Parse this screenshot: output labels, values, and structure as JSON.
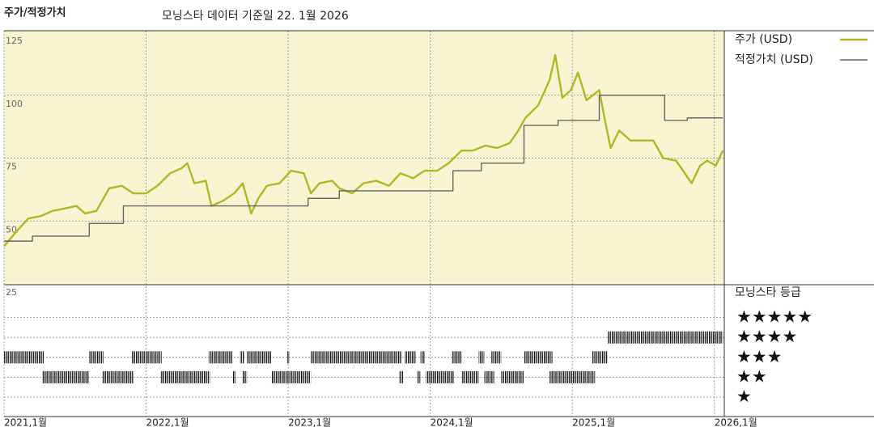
{
  "header": {
    "title": "주가/적정가치",
    "date_note": "모닝스타 데이터 기준일 22. 1월 2026"
  },
  "chart_data": [
    {
      "type": "line",
      "xlim": [
        2021,
        2026.07
      ],
      "ylim": [
        25,
        125
      ],
      "yticks": [
        25,
        50,
        75,
        100,
        125
      ],
      "xticks": [
        {
          "value": 2021,
          "label": "2021,1월"
        },
        {
          "value": 2022,
          "label": "2022,1월"
        },
        {
          "value": 2023,
          "label": "2023,1월"
        },
        {
          "value": 2024,
          "label": "2024,1월"
        },
        {
          "value": 2025,
          "label": "2025,1월"
        },
        {
          "value": 2026,
          "label": "2026,1월"
        }
      ],
      "grid": true,
      "series": [
        {
          "name": "주가 (USD)",
          "color": "#b3b626",
          "x": [
            2021.0,
            2021.09,
            2021.17,
            2021.26,
            2021.34,
            2021.43,
            2021.51,
            2021.57,
            2021.65,
            2021.74,
            2021.83,
            2021.91,
            2022.0,
            2022.08,
            2022.17,
            2022.25,
            2022.29,
            2022.34,
            2022.42,
            2022.46,
            2022.54,
            2022.62,
            2022.68,
            2022.74,
            2022.79,
            2022.85,
            2022.94,
            2023.02,
            2023.11,
            2023.16,
            2023.22,
            2023.31,
            2023.36,
            2023.45,
            2023.53,
            2023.62,
            2023.71,
            2023.79,
            2023.88,
            2023.96,
            2024.05,
            2024.13,
            2024.22,
            2024.3,
            2024.39,
            2024.47,
            2024.56,
            2024.62,
            2024.67,
            2024.76,
            2024.84,
            2024.88,
            2024.93,
            2024.99,
            2025.04,
            2025.1,
            2025.19,
            2025.23,
            2025.27,
            2025.33,
            2025.41,
            2025.5,
            2025.57,
            2025.64,
            2025.73,
            2025.78,
            2025.84,
            2025.9,
            2025.95,
            2026.01,
            2026.06
          ],
          "values": [
            40,
            46,
            51,
            52,
            54,
            55,
            56,
            53,
            54,
            63,
            64,
            61,
            61,
            64,
            69,
            71,
            73,
            65,
            66,
            56,
            58,
            61,
            65,
            53,
            59,
            64,
            65,
            70,
            69,
            61,
            65,
            66,
            63,
            61,
            65,
            66,
            64,
            69,
            67,
            70,
            70,
            73,
            78,
            78,
            80,
            79,
            81,
            86,
            91,
            96,
            106,
            116,
            99,
            102,
            109,
            98,
            102,
            90,
            79,
            86,
            82,
            82,
            82,
            75,
            74,
            70,
            65,
            72,
            74,
            72,
            78
          ]
        },
        {
          "name": "적정가치 (USD)",
          "color": "#666666",
          "drawstyle": "steps-post",
          "x": [
            2021.0,
            2021.2,
            2021.6,
            2021.84,
            2023.14,
            2023.36,
            2024.16,
            2024.36,
            2024.66,
            2024.9,
            2025.19,
            2025.65,
            2025.81,
            2026.06
          ],
          "values": [
            42,
            44,
            49,
            56,
            59,
            62,
            70,
            73,
            88,
            90,
            100,
            90,
            91,
            91
          ]
        }
      ]
    },
    {
      "type": "rating",
      "title": "모닝스타 등급",
      "color": "#111111",
      "categories": [
        "★",
        "★★",
        "★★★",
        "★★★★",
        "★★★★★"
      ],
      "segments": [
        {
          "start": 2021.0,
          "end": 2021.28,
          "rating": 3
        },
        {
          "start": 2021.27,
          "end": 2021.6,
          "rating": 2
        },
        {
          "start": 2021.6,
          "end": 2021.7,
          "rating": 3
        },
        {
          "start": 2021.69,
          "end": 2021.91,
          "rating": 2
        },
        {
          "start": 2021.9,
          "end": 2022.11,
          "rating": 3
        },
        {
          "start": 2022.1,
          "end": 2022.45,
          "rating": 2
        },
        {
          "start": 2022.44,
          "end": 2022.61,
          "rating": 3
        },
        {
          "start": 2022.61,
          "end": 2022.63,
          "rating": 2
        },
        {
          "start": 2022.66,
          "end": 2022.69,
          "rating": 3
        },
        {
          "start": 2022.68,
          "end": 2022.71,
          "rating": 2
        },
        {
          "start": 2022.71,
          "end": 2022.88,
          "rating": 3
        },
        {
          "start": 2022.88,
          "end": 2023.16,
          "rating": 2
        },
        {
          "start": 2022.99,
          "end": 2023.01,
          "rating": 3
        },
        {
          "start": 2023.16,
          "end": 2023.8,
          "rating": 3
        },
        {
          "start": 2023.78,
          "end": 2023.81,
          "rating": 2
        },
        {
          "start": 2023.82,
          "end": 2023.9,
          "rating": 3
        },
        {
          "start": 2023.91,
          "end": 2023.93,
          "rating": 2
        },
        {
          "start": 2023.93,
          "end": 2023.96,
          "rating": 3
        },
        {
          "start": 2023.97,
          "end": 2024.17,
          "rating": 2
        },
        {
          "start": 2024.15,
          "end": 2024.22,
          "rating": 3
        },
        {
          "start": 2024.22,
          "end": 2024.34,
          "rating": 2
        },
        {
          "start": 2024.34,
          "end": 2024.38,
          "rating": 3
        },
        {
          "start": 2024.38,
          "end": 2024.45,
          "rating": 2
        },
        {
          "start": 2024.43,
          "end": 2024.5,
          "rating": 3
        },
        {
          "start": 2024.5,
          "end": 2024.66,
          "rating": 2
        },
        {
          "start": 2024.66,
          "end": 2024.86,
          "rating": 3
        },
        {
          "start": 2024.84,
          "end": 2025.16,
          "rating": 2
        },
        {
          "start": 2025.14,
          "end": 2025.25,
          "rating": 3
        },
        {
          "start": 2025.25,
          "end": 2026.06,
          "rating": 4
        }
      ]
    }
  ]
}
